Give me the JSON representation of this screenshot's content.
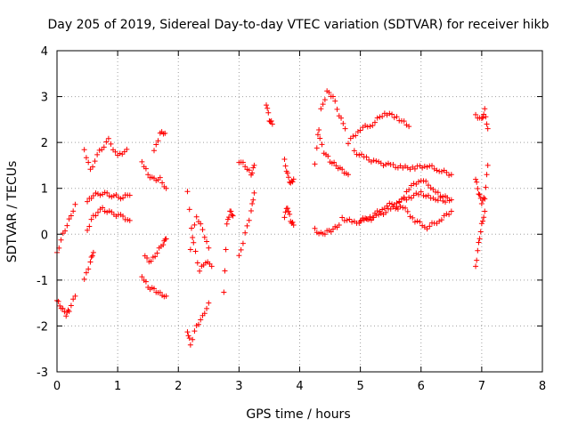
{
  "chart_data": {
    "type": "scatter",
    "title": "Day 205 of 2019, Sidereal Day-to-day VTEC variation (SDTVAR) for receiver hikb",
    "xlabel": "GPS time / hours",
    "ylabel": "SDTVAR / TECUs",
    "xlim": [
      0,
      8
    ],
    "ylim": [
      -3,
      4
    ],
    "xticks": [
      "0",
      "1",
      "2",
      "3",
      "4",
      "5",
      "6",
      "7",
      "8"
    ],
    "yticks": [
      "-3",
      "-2",
      "-1",
      "0",
      "1",
      "2",
      "3",
      "4"
    ],
    "grid": true,
    "marker": "+",
    "color": "#ff0000",
    "segments": [
      {
        "x": [
          0.0,
          0.1,
          0.2,
          0.3
        ],
        "y": [
          -0.4,
          0.0,
          0.3,
          0.65
        ]
      },
      {
        "x": [
          0.0,
          0.07,
          0.15,
          0.2,
          0.3
        ],
        "y": [
          -1.45,
          -1.6,
          -1.75,
          -1.65,
          -1.35
        ]
      },
      {
        "x": [
          0.45,
          0.55,
          0.7,
          0.85,
          1.0,
          1.15
        ],
        "y": [
          1.85,
          1.4,
          1.8,
          2.05,
          1.7,
          1.85
        ]
      },
      {
        "x": [
          0.5,
          0.6,
          0.75,
          0.9,
          1.05,
          1.2
        ],
        "y": [
          0.7,
          0.85,
          0.9,
          0.85,
          0.8,
          0.85
        ]
      },
      {
        "x": [
          0.5,
          0.6,
          0.75,
          0.9,
          1.05,
          1.2
        ],
        "y": [
          0.1,
          0.4,
          0.55,
          0.45,
          0.4,
          0.3
        ]
      },
      {
        "x": [
          0.45,
          0.55,
          0.6
        ],
        "y": [
          -1.0,
          -0.6,
          -0.4
        ]
      },
      {
        "x": [
          1.4,
          1.5,
          1.6,
          1.7,
          1.8
        ],
        "y": [
          1.6,
          1.3,
          1.2,
          1.2,
          1.0
        ]
      },
      {
        "x": [
          1.6,
          1.7,
          1.78
        ],
        "y": [
          1.8,
          2.2,
          2.2
        ]
      },
      {
        "x": [
          1.4,
          1.5,
          1.6,
          1.7,
          1.8
        ],
        "y": [
          -0.9,
          -1.15,
          -1.2,
          -1.3,
          -1.35
        ]
      },
      {
        "x": [
          1.45,
          1.55,
          1.65,
          1.75,
          1.8
        ],
        "y": [
          -0.5,
          -0.6,
          -0.4,
          -0.2,
          -0.1
        ]
      },
      {
        "x": [
          2.15,
          2.2,
          2.3,
          2.4,
          2.5
        ],
        "y": [
          -2.1,
          -2.4,
          -2.0,
          -1.8,
          -1.5
        ]
      },
      {
        "x": [
          2.15,
          2.25,
          2.35,
          2.45,
          2.55
        ],
        "y": [
          0.9,
          -0.2,
          -0.8,
          -0.6,
          -0.7
        ]
      },
      {
        "x": [
          2.2,
          2.3,
          2.4,
          2.5
        ],
        "y": [
          -0.3,
          0.4,
          0.1,
          -0.3
        ]
      },
      {
        "x": [
          2.75,
          2.8,
          2.85,
          2.9
        ],
        "y": [
          -1.3,
          0.2,
          0.5,
          0.4
        ]
      },
      {
        "x": [
          3.0,
          3.1,
          3.2,
          3.25
        ],
        "y": [
          1.6,
          1.5,
          1.3,
          1.5
        ]
      },
      {
        "x": [
          3.0,
          3.1,
          3.2,
          3.25
        ],
        "y": [
          -0.5,
          0.0,
          0.5,
          0.9
        ]
      },
      {
        "x": [
          3.45,
          3.5,
          3.55
        ],
        "y": [
          2.85,
          2.5,
          2.4
        ]
      },
      {
        "x": [
          3.75,
          3.8,
          3.85,
          3.9
        ],
        "y": [
          1.6,
          1.3,
          1.1,
          1.2
        ]
      },
      {
        "x": [
          3.75,
          3.8,
          3.85,
          3.9
        ],
        "y": [
          0.4,
          0.6,
          0.3,
          0.2
        ]
      },
      {
        "x": [
          4.25,
          4.35,
          4.45,
          4.55,
          4.65,
          4.75
        ],
        "y": [
          1.5,
          2.7,
          3.1,
          3.0,
          2.6,
          2.3
        ]
      },
      {
        "x": [
          4.3,
          4.4,
          4.5,
          4.6,
          4.7,
          4.8
        ],
        "y": [
          2.2,
          1.8,
          1.6,
          1.5,
          1.4,
          1.3
        ]
      },
      {
        "x": [
          4.25,
          4.35,
          4.45,
          4.55,
          4.65
        ],
        "y": [
          0.1,
          0.0,
          0.05,
          0.1,
          0.2
        ]
      },
      {
        "x": [
          4.8,
          5.0,
          5.2,
          5.4,
          5.6,
          5.8
        ],
        "y": [
          2.0,
          2.3,
          2.4,
          2.65,
          2.55,
          2.35
        ]
      },
      {
        "x": [
          4.9,
          5.1,
          5.3,
          5.5,
          5.7,
          5.9,
          6.1,
          6.3,
          6.5
        ],
        "y": [
          1.8,
          1.65,
          1.55,
          1.5,
          1.45,
          1.45,
          1.5,
          1.4,
          1.3
        ]
      },
      {
        "x": [
          5.0,
          5.2,
          5.4,
          5.6,
          5.8,
          6.0,
          6.2,
          6.4,
          6.5
        ],
        "y": [
          0.3,
          0.4,
          0.6,
          0.7,
          0.8,
          0.9,
          0.75,
          0.8,
          0.75
        ]
      },
      {
        "x": [
          4.7,
          4.9,
          5.1,
          5.3,
          5.5,
          5.7,
          5.9,
          6.1,
          6.3,
          6.5
        ],
        "y": [
          0.35,
          0.25,
          0.3,
          0.4,
          0.55,
          0.6,
          0.3,
          0.15,
          0.3,
          0.5
        ]
      },
      {
        "x": [
          5.6,
          5.8,
          6.0,
          6.2,
          6.4
        ],
        "y": [
          0.6,
          1.0,
          1.2,
          1.0,
          0.7
        ]
      },
      {
        "x": [
          6.9,
          7.0,
          7.05,
          7.1
        ],
        "y": [
          2.6,
          2.5,
          2.7,
          2.3
        ]
      },
      {
        "x": [
          6.9,
          6.95,
          7.0,
          7.05,
          7.1
        ],
        "y": [
          1.2,
          0.9,
          0.7,
          0.8,
          1.5
        ]
      },
      {
        "x": [
          6.9,
          6.95,
          7.0,
          7.05
        ],
        "y": [
          -0.7,
          -0.2,
          0.2,
          0.5
        ]
      }
    ]
  }
}
